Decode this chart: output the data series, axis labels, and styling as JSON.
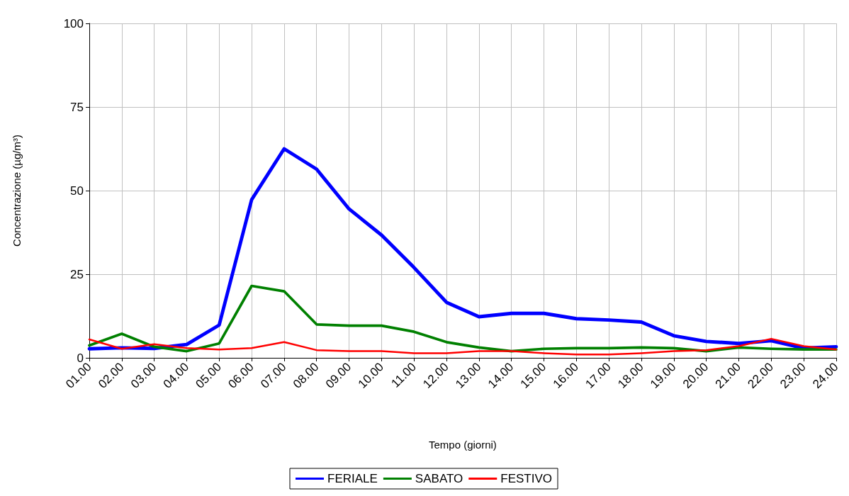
{
  "chart_data": {
    "type": "line",
    "xlabel": "Tempo (giorni)",
    "ylabel": "Concentrazione (µg/m³)",
    "categories": [
      "01.00",
      "02.00",
      "03.00",
      "04.00",
      "05.00",
      "06.00",
      "07.00",
      "08.00",
      "09.00",
      "10.00",
      "11.00",
      "12.00",
      "13.00",
      "14.00",
      "15.00",
      "16.00",
      "17.00",
      "18.00",
      "19.00",
      "20.00",
      "21.00",
      "22.00",
      "23.00",
      "24.00"
    ],
    "series": [
      {
        "name": "FERIALE",
        "color": "#0000ff",
        "values": [
          2.7,
          3,
          2.8,
          4,
          9.8,
          47.3,
          62.5,
          56.4,
          44.5,
          36.7,
          27,
          16.6,
          12.3,
          13.3,
          13.3,
          11.7,
          11.3,
          10.7,
          6.6,
          4.9,
          4.3,
          5.1,
          2.9,
          3.3
        ]
      },
      {
        "name": "SABATO",
        "color": "#008000",
        "values": [
          3.7,
          7.2,
          3.3,
          2,
          4.3,
          21.5,
          19.9,
          10,
          9.6,
          9.6,
          7.8,
          4.7,
          3.1,
          2,
          2.7,
          2.9,
          2.9,
          3.1,
          2.9,
          2,
          3.1,
          2.7,
          2.5,
          2.5
        ]
      },
      {
        "name": "FESTIVO",
        "color": "#ff0000",
        "values": [
          5.5,
          2.7,
          4.1,
          2.9,
          2.5,
          2.9,
          4.7,
          2.3,
          2,
          2,
          1.4,
          1.4,
          2,
          2,
          1.4,
          1,
          1,
          1.4,
          2,
          2.3,
          3.5,
          5.7,
          3.5,
          2.5
        ]
      }
    ],
    "ylim": [
      0,
      100
    ],
    "yticks": [
      0,
      25,
      50,
      75,
      100
    ],
    "grid": true,
    "legend": "bottom",
    "marker": "none",
    "line_style": "solid"
  }
}
